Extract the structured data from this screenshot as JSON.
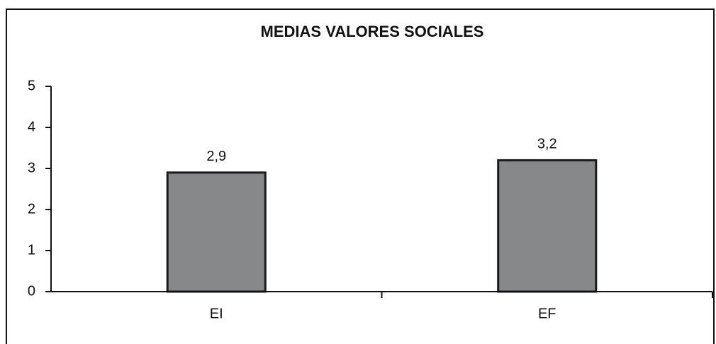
{
  "chart_data": {
    "type": "bar",
    "title": "MEDIAS VALORES SOCIALES",
    "categories": [
      "EI",
      "EF"
    ],
    "values": [
      2.9,
      3.2
    ],
    "value_labels": [
      "2,9",
      "3,2"
    ],
    "color": "#87888a",
    "ylim": [
      0,
      5
    ],
    "yticks": [
      0,
      1,
      2,
      3,
      4,
      5
    ],
    "grid": false
  }
}
